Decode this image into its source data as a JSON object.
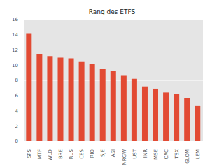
{
  "chart_data": {
    "type": "bar",
    "title": "Rang des ETFS",
    "categories": [
      "SPS",
      "MTF",
      "WLD",
      "BRE",
      "RUS",
      "CES",
      "RIO",
      "SJE",
      "ASI",
      "NRGW",
      "UST",
      "INR",
      "MSE",
      "CAC",
      "TSX",
      "GLOM",
      "LEM"
    ],
    "values": [
      14.2,
      11.5,
      11.2,
      11.0,
      10.9,
      10.5,
      10.2,
      9.5,
      9.2,
      8.7,
      8.2,
      7.2,
      6.9,
      6.4,
      6.2,
      5.7,
      4.7
    ],
    "color": "#e24a33",
    "ylim": [
      0,
      16
    ],
    "yticks": [
      0,
      2,
      4,
      6,
      8,
      10,
      12,
      14,
      16
    ],
    "grid": true
  }
}
